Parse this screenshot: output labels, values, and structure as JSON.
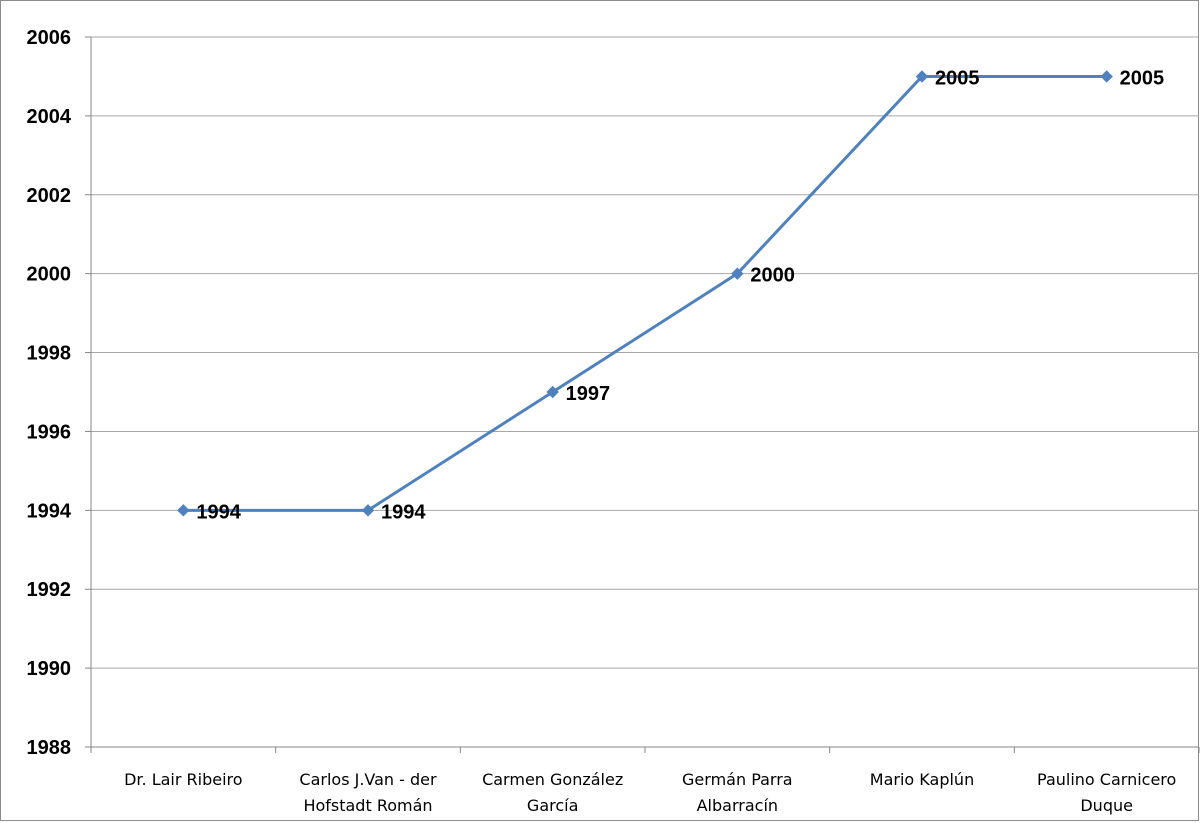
{
  "chart_data": {
    "type": "line",
    "title": "",
    "xlabel": "",
    "ylabel": "",
    "categories": [
      [
        "Dr. Lair Ribeiro"
      ],
      [
        "Carlos J.Van - der",
        "Hofstadt Román"
      ],
      [
        "Carmen González",
        "García"
      ],
      [
        "Germán Parra",
        "Albarracín"
      ],
      [
        "Mario Kaplún"
      ],
      [
        "Paulino Carnicero",
        "Duque"
      ]
    ],
    "series": [
      {
        "values": [
          1994,
          1994,
          1997,
          2000,
          2005,
          2005
        ]
      }
    ],
    "data_labels": [
      "1994",
      "1994",
      "1997",
      "2000",
      "2005",
      "2005"
    ],
    "ylim": [
      1988,
      2006
    ],
    "yticks": [
      "1988",
      "1990",
      "1992",
      "1994",
      "1996",
      "1998",
      "2000",
      "2002",
      "2004",
      "2006"
    ],
    "grid": true,
    "legend": "none",
    "colors": {
      "line": "#4f81bd",
      "marker": "#4f81bd",
      "grid": "#a6a6a6",
      "axis": "#868686"
    }
  }
}
